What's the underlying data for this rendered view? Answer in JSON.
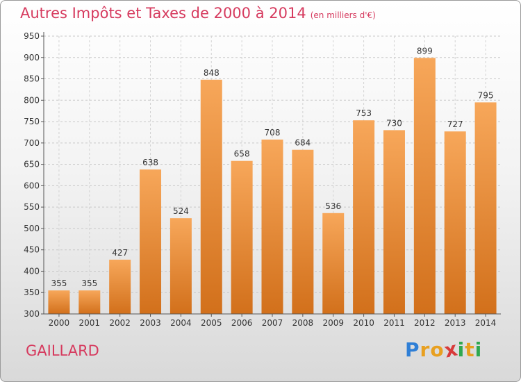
{
  "header": {
    "title": "Autres Impôts et Taxes de 2000 à 2014",
    "unit": "(en milliers d'€)"
  },
  "commune": "GAILLARD",
  "logo": {
    "letters": [
      "P",
      "r",
      "o",
      "x",
      "i",
      "t",
      "i"
    ],
    "colors": [
      "#2f7fd6",
      "#e8a020",
      "#e8a020",
      "#d83a3a",
      "#2fa84f",
      "#e8a020",
      "#2fa84f"
    ]
  },
  "colors": {
    "bar_top": "#f7a75a",
    "bar_bottom": "#d2701b",
    "label": "#333333",
    "axis": "#555555"
  },
  "chart_data": {
    "type": "bar",
    "categories": [
      "2000",
      "2001",
      "2002",
      "2003",
      "2004",
      "2005",
      "2006",
      "2007",
      "2008",
      "2009",
      "2010",
      "2011",
      "2012",
      "2013",
      "2014"
    ],
    "values": [
      355,
      355,
      427,
      638,
      524,
      848,
      658,
      708,
      684,
      536,
      753,
      730,
      899,
      727,
      795
    ],
    "data_labels": [
      "355",
      "355",
      "427",
      "638",
      "524",
      "848",
      "658",
      "708",
      "684",
      "536",
      "753",
      "730",
      "899",
      "727",
      "795"
    ],
    "y_ticks": [
      "300",
      "350",
      "400",
      "450",
      "500",
      "550",
      "600",
      "650",
      "700",
      "750",
      "800",
      "850",
      "900",
      "950"
    ],
    "ylim": [
      300,
      950
    ],
    "grid": true
  }
}
